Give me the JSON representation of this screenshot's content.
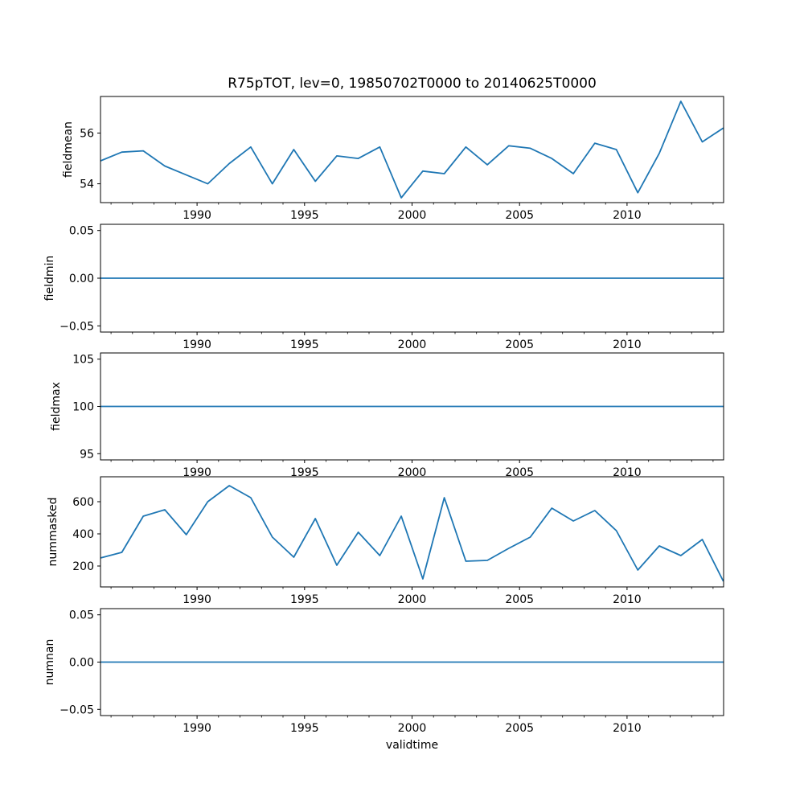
{
  "figure": {
    "title": "R75pTOT, lev=0, 19850702T0000 to 20140625T0000",
    "xlabel": "validtime",
    "line_color": "#1f77b4",
    "axis_color": "#000000",
    "background_color": "#ffffff"
  },
  "x_axis": {
    "label": "validtime",
    "xlim": [
      1985.51,
      2014.49
    ],
    "major_ticks": [
      {
        "value": 1990,
        "label": "1990"
      },
      {
        "value": 1995,
        "label": "1995"
      },
      {
        "value": 2000,
        "label": "2000"
      },
      {
        "value": 2005,
        "label": "2005"
      },
      {
        "value": 2010,
        "label": "2010"
      }
    ],
    "minor_tick_start": 1986,
    "minor_tick_end": 2014,
    "x": [
      1985.5,
      1986.5,
      1987.5,
      1988.5,
      1989.5,
      1990.5,
      1991.5,
      1992.5,
      1993.5,
      1994.5,
      1995.5,
      1996.5,
      1997.5,
      1998.5,
      1999.5,
      2000.5,
      2001.5,
      2002.5,
      2003.5,
      2004.5,
      2005.5,
      2006.5,
      2007.5,
      2008.5,
      2009.5,
      2010.5,
      2011.5,
      2012.5,
      2013.5,
      2014.48
    ]
  },
  "chart_data": [
    {
      "type": "line",
      "name": "fieldmean",
      "ylabel": "fieldmean",
      "ylim": [
        53.26,
        57.44
      ],
      "yticks": [
        {
          "value": 54,
          "label": "54"
        },
        {
          "value": 56,
          "label": "56"
        }
      ],
      "grid": false,
      "values": [
        54.9,
        55.25,
        55.3,
        54.7,
        54.35,
        54.0,
        54.8,
        55.45,
        54.0,
        55.35,
        54.1,
        55.1,
        55.0,
        55.45,
        53.45,
        54.5,
        54.4,
        55.45,
        54.75,
        55.5,
        55.4,
        55.0,
        54.4,
        55.6,
        55.35,
        53.65,
        55.2,
        57.25,
        55.65,
        56.2
      ]
    },
    {
      "type": "line",
      "name": "fieldmin",
      "ylabel": "fieldmin",
      "ylim": [
        -0.0565,
        0.0565
      ],
      "yticks": [
        {
          "value": -0.05,
          "label": "−0.05"
        },
        {
          "value": 0,
          "label": "0.00"
        },
        {
          "value": 0.05,
          "label": "0.05"
        }
      ],
      "grid": false,
      "values": [
        0,
        0,
        0,
        0,
        0,
        0,
        0,
        0,
        0,
        0,
        0,
        0,
        0,
        0,
        0,
        0,
        0,
        0,
        0,
        0,
        0,
        0,
        0,
        0,
        0,
        0,
        0,
        0,
        0,
        0
      ]
    },
    {
      "type": "line",
      "name": "fieldmax",
      "ylabel": "fieldmax",
      "ylim": [
        94.35,
        105.65
      ],
      "yticks": [
        {
          "value": 95,
          "label": "95"
        },
        {
          "value": 100,
          "label": "100"
        },
        {
          "value": 105,
          "label": "105"
        }
      ],
      "grid": false,
      "values": [
        100,
        100,
        100,
        100,
        100,
        100,
        100,
        100,
        100,
        100,
        100,
        100,
        100,
        100,
        100,
        100,
        100,
        100,
        100,
        100,
        100,
        100,
        100,
        100,
        100,
        100,
        100,
        100,
        100,
        100
      ]
    },
    {
      "type": "line",
      "name": "nummasked",
      "ylabel": "nummasked",
      "ylim": [
        70,
        755
      ],
      "yticks": [
        {
          "value": 200,
          "label": "200"
        },
        {
          "value": 400,
          "label": "400"
        },
        {
          "value": 600,
          "label": "600"
        }
      ],
      "grid": false,
      "values": [
        250,
        285,
        510,
        550,
        395,
        600,
        700,
        625,
        380,
        255,
        495,
        205,
        410,
        265,
        510,
        120,
        625,
        230,
        235,
        310,
        380,
        560,
        480,
        545,
        420,
        175,
        325,
        265,
        365,
        105
      ]
    },
    {
      "type": "line",
      "name": "numnan",
      "ylabel": "numnan",
      "ylim": [
        -0.0565,
        0.0565
      ],
      "yticks": [
        {
          "value": -0.05,
          "label": "−0.05"
        },
        {
          "value": 0,
          "label": "0.00"
        },
        {
          "value": 0.05,
          "label": "0.05"
        }
      ],
      "grid": false,
      "values": [
        0,
        0,
        0,
        0,
        0,
        0,
        0,
        0,
        0,
        0,
        0,
        0,
        0,
        0,
        0,
        0,
        0,
        0,
        0,
        0,
        0,
        0,
        0,
        0,
        0,
        0,
        0,
        0,
        0,
        0
      ]
    }
  ]
}
